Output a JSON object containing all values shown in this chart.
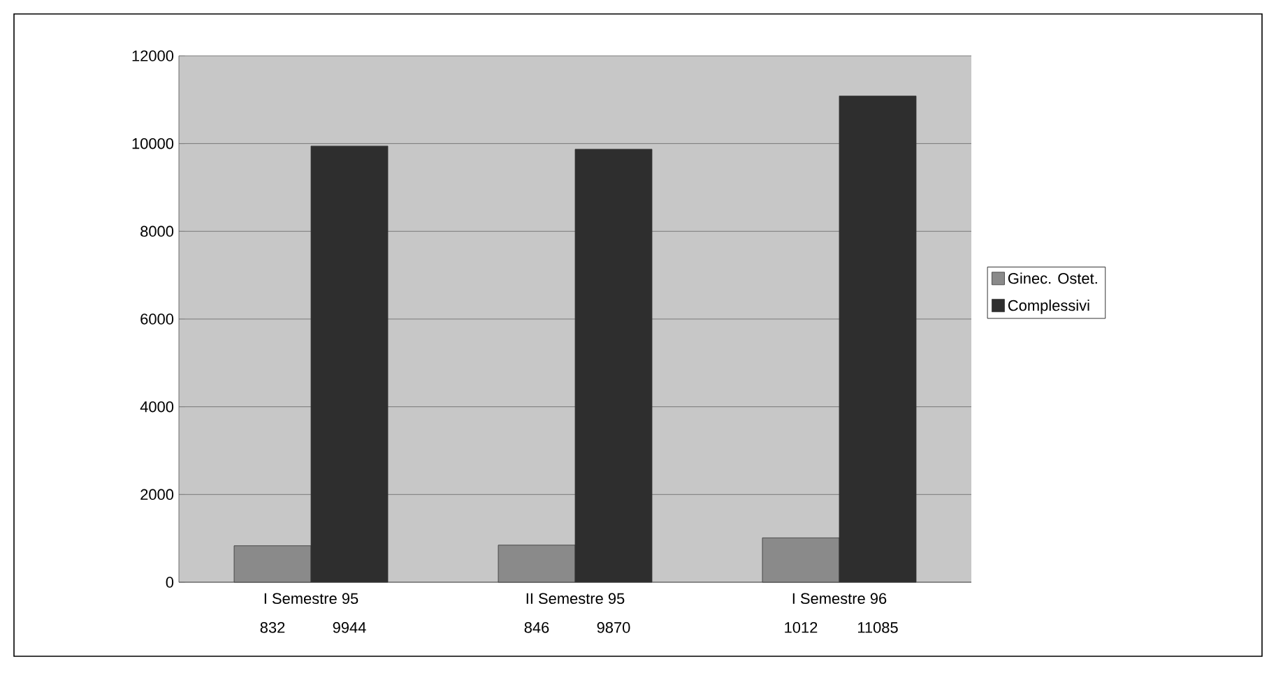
{
  "chart_data": {
    "type": "bar",
    "categories": [
      "I Semestre 95",
      "II Semestre 95",
      "I Semestre 96"
    ],
    "series": [
      {
        "name": "Ginec. Ostet.",
        "color": "#8a8a8a",
        "values": [
          832,
          846,
          1012
        ]
      },
      {
        "name": "Complessivi",
        "color": "#2e2e2e",
        "values": [
          9944,
          9870,
          11085
        ]
      }
    ],
    "ylim": [
      0,
      12000
    ],
    "yticks": [
      0,
      2000,
      4000,
      6000,
      8000,
      10000,
      12000
    ],
    "grid": "y",
    "legend": "right",
    "data_labels": true
  }
}
